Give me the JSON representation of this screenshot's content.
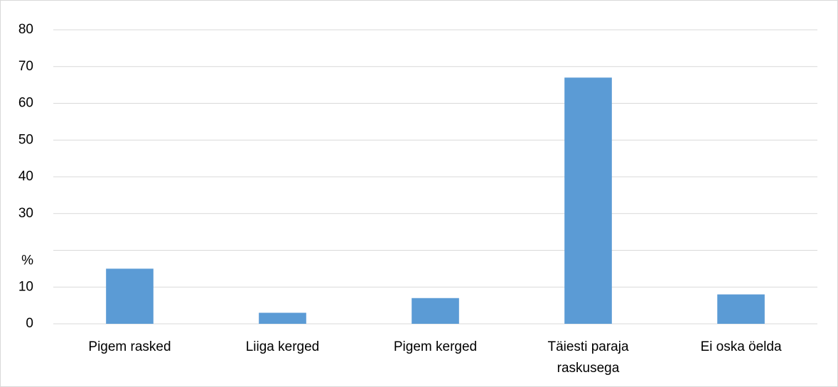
{
  "chart_data": {
    "type": "bar",
    "categories": [
      "Pigem rasked",
      "Liiga kerged",
      "Pigem kerged",
      "Täiesti paraja raskusega",
      "Ei oska öelda"
    ],
    "values": [
      15,
      3,
      7,
      67,
      8
    ],
    "color": "#5b9bd5",
    "ylim": [
      0,
      80
    ],
    "yticks": [
      0,
      10,
      {
        "value": 20,
        "label": "%"
      },
      30,
      40,
      50,
      60,
      70,
      80
    ],
    "grid": true
  }
}
